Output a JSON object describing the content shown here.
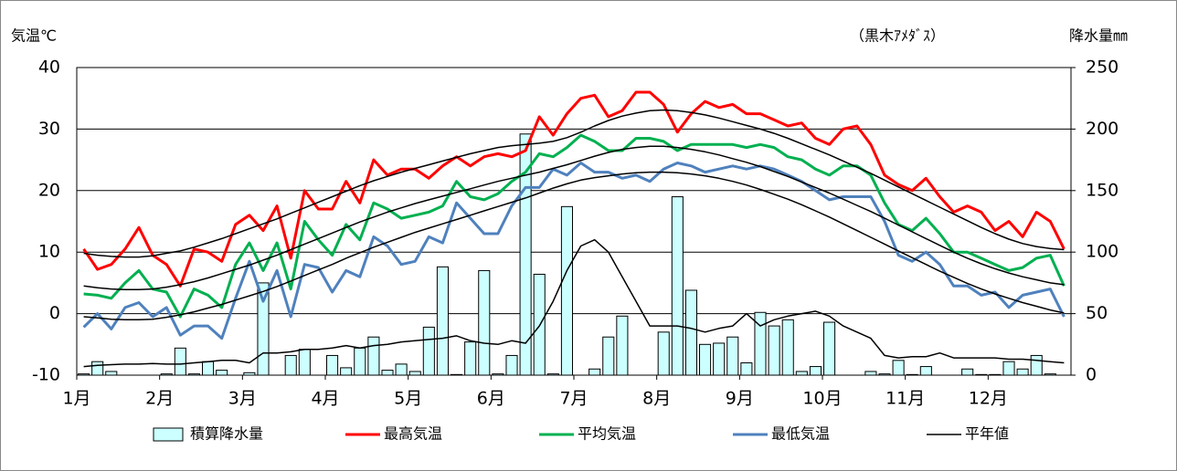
{
  "chart_data": {
    "type": "bar_line",
    "y_label": "気温℃",
    "y2_label": "降水量㎜",
    "annotation": "（黒木ｱﾒﾀﾞｽ）",
    "categories": [
      "1月",
      null,
      null,
      null,
      null,
      null,
      "2月",
      null,
      null,
      null,
      null,
      null,
      "3月",
      null,
      null,
      null,
      null,
      null,
      "4月",
      null,
      null,
      null,
      null,
      null,
      "5月",
      null,
      null,
      null,
      null,
      null,
      "6月",
      null,
      null,
      null,
      null,
      null,
      "7月",
      null,
      null,
      null,
      null,
      null,
      "8月",
      null,
      null,
      null,
      null,
      null,
      "9月",
      null,
      null,
      null,
      null,
      null,
      "10月",
      null,
      null,
      null,
      null,
      null,
      "11月",
      null,
      null,
      null,
      null,
      null,
      "12月",
      null,
      null,
      null,
      null,
      null
    ],
    "ylim": [
      -10,
      40
    ],
    "yticks": [
      -10,
      0,
      10,
      20,
      30,
      40
    ],
    "y2lim": [
      0,
      250
    ],
    "y2ticks": [
      0,
      50,
      100,
      150,
      200,
      250
    ],
    "grid": true,
    "legend": "bottom",
    "series": [
      {
        "name": "積算降水量",
        "type": "bar",
        "axis": "y2",
        "color": "#ccffff",
        "values": [
          1,
          11,
          3,
          0,
          0,
          0,
          1,
          22,
          1,
          11,
          4,
          0,
          2,
          75,
          0,
          16,
          21,
          0,
          16,
          6,
          22,
          31,
          4,
          9,
          3,
          39,
          88,
          0.5,
          27,
          85,
          1,
          16,
          196,
          82,
          1,
          137,
          0,
          5,
          31,
          48,
          0,
          0,
          35,
          145,
          69,
          25,
          26,
          31,
          10,
          51,
          40,
          45,
          3,
          7,
          43,
          0,
          0,
          3,
          1,
          12,
          0.5,
          7,
          0,
          0,
          5,
          0.5,
          0.5,
          11,
          5,
          16,
          1,
          0
        ]
      },
      {
        "name": "最高気温",
        "type": "line",
        "color": "#ff0000",
        "values": [
          10.5,
          7.2,
          8,
          10.5,
          14,
          9.5,
          8,
          4.5,
          10.5,
          10,
          8.5,
          14.5,
          16,
          13.5,
          17.5,
          9,
          20,
          17,
          17,
          21.5,
          18,
          25,
          22.5,
          23.5,
          23.5,
          22,
          24,
          25.5,
          24,
          25.5,
          26,
          25.5,
          26.5,
          32,
          29,
          32.5,
          35,
          35.5,
          32,
          33,
          36,
          36,
          34,
          29.5,
          32.5,
          34.5,
          33.5,
          34,
          32.5,
          32.5,
          31.5,
          30.5,
          31,
          28.5,
          27.5,
          30,
          30.5,
          27.5,
          22.5,
          21,
          20,
          22,
          19,
          16.5,
          17.5,
          16.5,
          13.5,
          15,
          12.5,
          16.5,
          15,
          10.5
        ]
      },
      {
        "name": "平均気温",
        "type": "line",
        "color": "#00b050",
        "values": [
          3.2,
          3,
          2.5,
          5,
          7,
          4,
          3.5,
          -0.5,
          4,
          3,
          1,
          8,
          11.5,
          7,
          11.5,
          4,
          15,
          12,
          9.5,
          14.5,
          12,
          18,
          17,
          15.5,
          16,
          16.5,
          17.5,
          21.5,
          19,
          18.5,
          19.5,
          21.5,
          23,
          26,
          25.5,
          27,
          29,
          28,
          26.5,
          26.5,
          28.5,
          28.5,
          28,
          26.5,
          27.5,
          27.5,
          27.5,
          27.5,
          27,
          27.5,
          27,
          25.5,
          25,
          23.5,
          22.5,
          24,
          24,
          22.5,
          18,
          14.5,
          13.5,
          15.5,
          13,
          10,
          10,
          9,
          8,
          7,
          7.5,
          9,
          9.5,
          4.5
        ]
      },
      {
        "name": "最低気温",
        "type": "line",
        "color": "#4f81bd",
        "values": [
          -2.2,
          0,
          -2.5,
          1,
          1.8,
          -0.5,
          1,
          -3.5,
          -2,
          -2,
          -4,
          2.5,
          8.5,
          2,
          7,
          -0.5,
          8,
          7.5,
          3.5,
          7,
          6,
          12.5,
          11,
          8,
          8.5,
          12.5,
          11.5,
          18,
          15.5,
          13,
          13,
          17.5,
          20.5,
          20.5,
          23.5,
          22.5,
          24.5,
          23,
          23,
          22,
          22.5,
          21.5,
          23.5,
          24.5,
          24,
          23,
          23.5,
          24,
          23.5,
          24,
          23.5,
          22.5,
          21.5,
          20,
          18.5,
          19,
          19,
          19,
          15,
          9.5,
          8.5,
          10,
          8,
          4.5,
          4.5,
          3,
          3.5,
          1,
          3,
          3.5,
          4,
          -0.5
        ]
      },
      {
        "name": "平年値",
        "type": "line",
        "color": "#000000",
        "values": [
          9.8,
          9.5,
          9.3,
          9.2,
          9.2,
          9.4,
          9.8,
          10.2,
          10.8,
          11.5,
          12.2,
          13,
          13.8,
          14.6,
          15.4,
          16.3,
          17.2,
          18.1,
          19,
          19.9,
          20.8,
          21.6,
          22.3,
          23,
          23.6,
          24.2,
          24.8,
          25.4,
          26,
          26.5,
          27,
          27.3,
          27.5,
          27.7,
          28,
          28.6,
          29.5,
          30.5,
          31.4,
          32.1,
          32.6,
          33,
          33.1,
          33,
          32.7,
          32.3,
          31.8,
          31.2,
          30.6,
          30,
          29.3,
          28.5,
          27.6,
          26.7,
          25.8,
          24.8,
          23.8,
          22.8,
          21.7,
          20.6,
          19.5,
          18.4,
          17.3,
          16.2,
          15.1,
          14,
          13,
          12.1,
          11.4,
          10.9,
          10.6,
          10.4
        ]
      },
      {
        "type": "line",
        "color": "#000000",
        "values": [
          4.5,
          4.2,
          4,
          3.9,
          3.9,
          4,
          4.3,
          4.7,
          5.2,
          5.8,
          6.5,
          7.2,
          7.9,
          8.7,
          9.5,
          10.4,
          11.3,
          12.2,
          13.1,
          14,
          14.9,
          15.7,
          16.5,
          17.2,
          17.9,
          18.5,
          19.1,
          19.7,
          20.3,
          20.9,
          21.5,
          22,
          22.5,
          23,
          23.6,
          24.2,
          24.9,
          25.6,
          26.2,
          26.7,
          27,
          27.2,
          27.2,
          27,
          26.7,
          26.3,
          25.8,
          25.2,
          24.6,
          23.9,
          23.1,
          22.3,
          21.4,
          20.5,
          19.6,
          18.6,
          17.6,
          16.6,
          15.5,
          14.4,
          13.3,
          12.2,
          11.1,
          10,
          9,
          8.1,
          7.3,
          6.6,
          6,
          5.5,
          5,
          4.7
        ]
      },
      {
        "type": "line",
        "color": "#000000",
        "values": [
          -0.5,
          -0.7,
          -0.9,
          -1,
          -1,
          -0.9,
          -0.6,
          -0.2,
          0.3,
          0.9,
          1.5,
          2.2,
          2.9,
          3.6,
          4.4,
          5.3,
          6.2,
          7.1,
          8,
          9,
          9.9,
          10.8,
          11.6,
          12.4,
          13.2,
          13.9,
          14.6,
          15.3,
          16,
          16.7,
          17.4,
          18.1,
          18.8,
          19.6,
          20.4,
          21.1,
          21.7,
          22.1,
          22.4,
          22.7,
          22.9,
          23,
          23,
          22.9,
          22.7,
          22.4,
          22,
          21.5,
          20.9,
          20.2,
          19.4,
          18.6,
          17.7,
          16.7,
          15.7,
          14.6,
          13.5,
          12.4,
          11.3,
          10.2,
          9.1,
          8,
          6.9,
          5.9,
          4.9,
          4,
          3.2,
          2.5,
          1.8,
          1.2,
          0.6,
          0.1
        ]
      },
      {
        "type": "line",
        "axis": "y2",
        "color": "#000000",
        "values": [
          7,
          8,
          8.5,
          9,
          9,
          9.5,
          9,
          9,
          10,
          11,
          12,
          12,
          10,
          18,
          18,
          19,
          21,
          21,
          22,
          24,
          22,
          24,
          25,
          27,
          28,
          29,
          30,
          32,
          28,
          26,
          25,
          28,
          26,
          40,
          60,
          85,
          105,
          110,
          100,
          80,
          60,
          40,
          40,
          40,
          38,
          35,
          38,
          40,
          50,
          40,
          45,
          48,
          50,
          52,
          48,
          40,
          35,
          30,
          16,
          14,
          15,
          15,
          18,
          14,
          14,
          14,
          14,
          13,
          13,
          12,
          11,
          10
        ]
      }
    ]
  }
}
